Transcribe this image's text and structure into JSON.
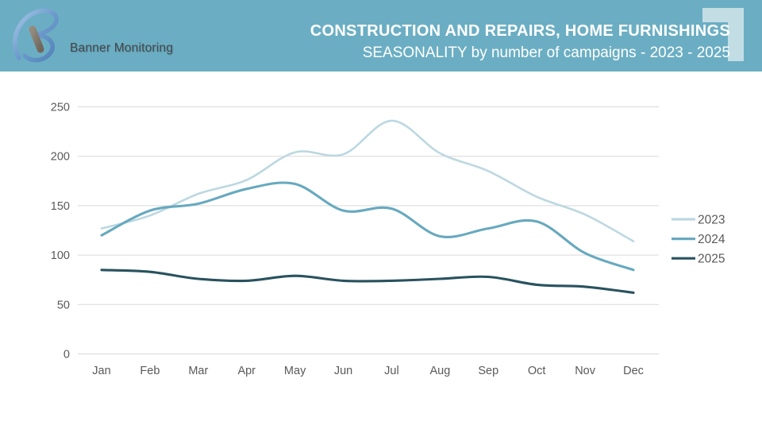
{
  "header": {
    "brand": "Banner Monitoring",
    "title": "CONSTRUCTION AND REPAIRS, HOME FURNISHINGS",
    "subtitle": "SEASONALITY by number of campaigns - 2023 - 2025",
    "background_color": "#6BAEC3",
    "corner_accent_color": "#C3DDE5"
  },
  "chart_data": {
    "type": "line",
    "title": "CONSTRUCTION AND REPAIRS, HOME FURNISHINGS",
    "subtitle": "SEASONALITY by number of campaigns - 2023 - 2025",
    "categories": [
      "Jan",
      "Feb",
      "Mar",
      "Apr",
      "May",
      "Jun",
      "Jul",
      "Aug",
      "Sep",
      "Oct",
      "Nov",
      "Dec"
    ],
    "series": [
      {
        "name": "2023",
        "color": "#BCD8E1",
        "width": 2.6,
        "values": [
          127,
          140,
          162,
          176,
          204,
          202,
          236,
          203,
          185,
          159,
          141,
          114
        ]
      },
      {
        "name": "2024",
        "color": "#67A9BF",
        "width": 3.1,
        "values": [
          120,
          145,
          152,
          167,
          172,
          145,
          147,
          119,
          127,
          134,
          102,
          85
        ]
      },
      {
        "name": "2025",
        "color": "#29525F",
        "width": 3.1,
        "values": [
          85,
          83,
          76,
          74,
          79,
          74,
          74,
          76,
          78,
          70,
          68,
          62
        ]
      }
    ],
    "xlabel": "",
    "ylabel": "",
    "ylim": [
      0,
      250
    ],
    "yticks": [
      0,
      50,
      100,
      150,
      200,
      250
    ],
    "grid": true,
    "grid_color": "#D9D9D9",
    "axis_text_color": "#595959",
    "legend_position": "right",
    "smooth": true
  }
}
